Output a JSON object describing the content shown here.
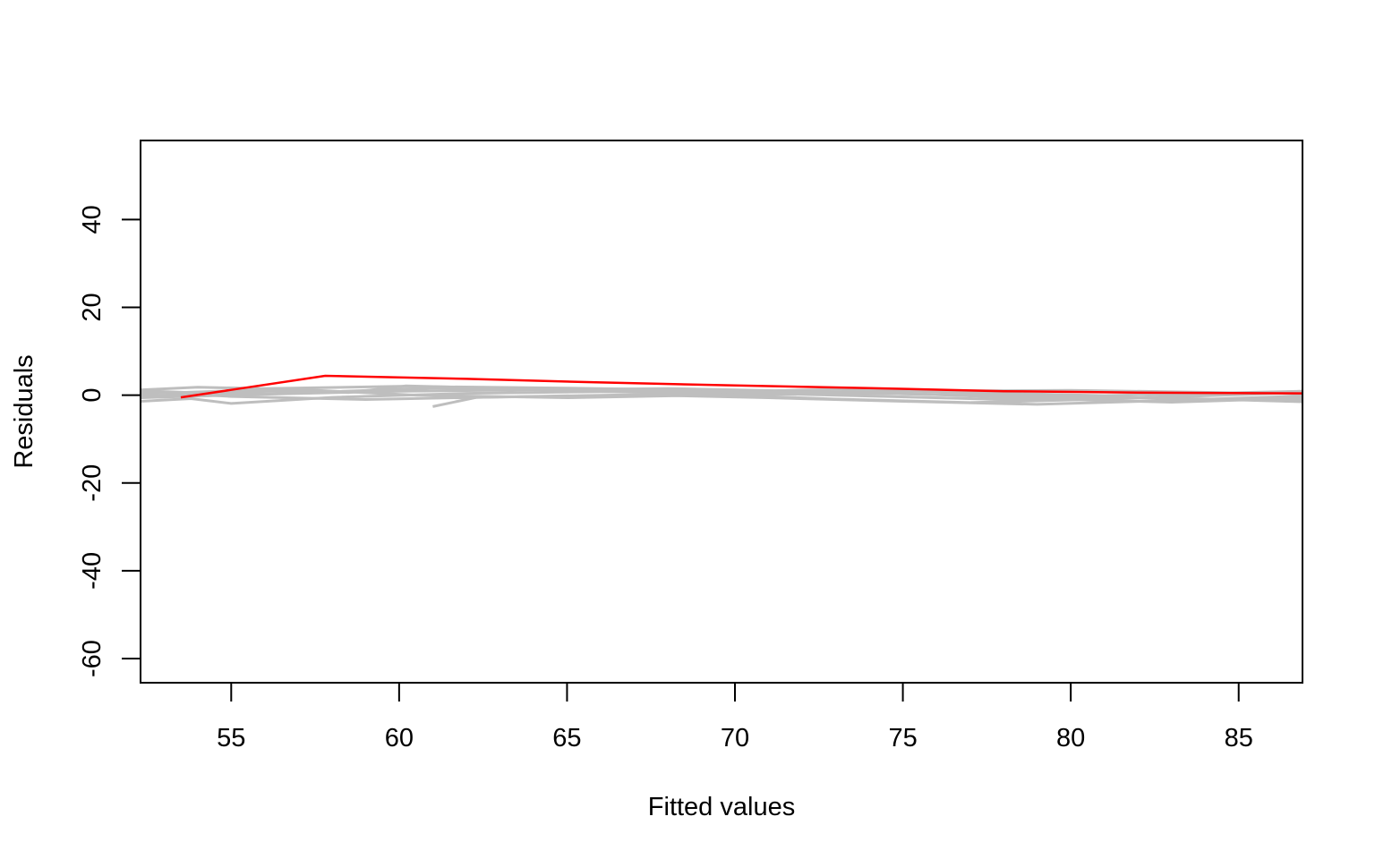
{
  "chart_data": {
    "type": "line",
    "title": "",
    "xlabel": "Fitted values",
    "ylabel": "Residuals",
    "xlim": [
      52.3,
      86.9
    ],
    "ylim": [
      -65.5,
      58
    ],
    "x_ticks": [
      55,
      60,
      65,
      70,
      75,
      80,
      85
    ],
    "y_ticks": [
      -60,
      -40,
      -20,
      0,
      20,
      40
    ],
    "grid": false,
    "legend": "none",
    "colors": {
      "highlight": "#ff0000",
      "background_series": "#bebebe",
      "axis": "#000000"
    },
    "series": [
      {
        "highlight": true,
        "x": [
          53.5,
          55.0,
          57.8,
          62.0,
          66.0,
          70.0,
          74.0,
          78.0,
          82.0,
          86.9
        ],
        "y": [
          -0.5,
          1.2,
          4.4,
          3.7,
          2.9,
          2.2,
          1.6,
          0.9,
          0.6,
          0.4
        ]
      },
      {
        "highlight": false,
        "x": [
          52.3,
          54.0,
          56.0,
          60.0,
          65.0,
          70.0,
          75.0,
          80.0,
          86.9
        ],
        "y": [
          1.2,
          1.8,
          1.5,
          2.0,
          1.6,
          1.0,
          0.3,
          -0.4,
          -1.2
        ]
      },
      {
        "highlight": false,
        "x": [
          52.3,
          53.8,
          55.0,
          58.0,
          62.0,
          66.0,
          70.0,
          74.0,
          78.0,
          82.0,
          86.9
        ],
        "y": [
          -1.4,
          -0.8,
          -1.9,
          -0.5,
          0.4,
          0.8,
          0.5,
          -0.2,
          -1.0,
          -0.6,
          0.9
        ]
      },
      {
        "highlight": false,
        "x": [
          52.3,
          55.5,
          58.5,
          60.2,
          64.0,
          69.0,
          73.0,
          77.0,
          81.0,
          86.9
        ],
        "y": [
          0.3,
          1.1,
          0.6,
          2.1,
          1.4,
          0.2,
          -0.9,
          -1.7,
          -0.9,
          0.6
        ]
      },
      {
        "highlight": false,
        "x": [
          61.0,
          62.3,
          66.0,
          70.0,
          75.0,
          80.0,
          86.9
        ],
        "y": [
          -2.6,
          -0.5,
          -0.1,
          0.4,
          0.9,
          1.1,
          0.3
        ]
      },
      {
        "highlight": false,
        "x": [
          52.3,
          56.0,
          60.0,
          64.0,
          68.0,
          72.0,
          76.0,
          80.0,
          84.0,
          86.9
        ],
        "y": [
          -0.6,
          0.2,
          0.9,
          1.2,
          1.5,
          0.9,
          0.1,
          -0.3,
          -0.9,
          -1.5
        ]
      },
      {
        "highlight": false,
        "x": [
          52.3,
          55.0,
          59.0,
          63.0,
          67.0,
          71.0,
          75.0,
          79.0,
          83.0,
          86.9
        ],
        "y": [
          0.8,
          -0.3,
          -1.0,
          -0.4,
          0.1,
          -0.6,
          -1.4,
          -2.1,
          -1.2,
          -0.2
        ]
      },
      {
        "highlight": false,
        "x": [
          52.3,
          57.0,
          61.0,
          65.0,
          69.0,
          73.0,
          77.0,
          81.0,
          86.9
        ],
        "y": [
          -0.2,
          0.5,
          1.6,
          1.1,
          0.7,
          1.3,
          0.6,
          -0.1,
          0.9
        ]
      },
      {
        "highlight": false,
        "x": [
          52.3,
          54.5,
          57.0,
          60.5,
          65.0,
          70.0,
          75.0,
          79.0,
          83.0,
          86.9
        ],
        "y": [
          1.0,
          0.4,
          1.3,
          0.0,
          -0.6,
          0.1,
          0.4,
          -0.8,
          -1.6,
          -0.7
        ]
      }
    ]
  }
}
